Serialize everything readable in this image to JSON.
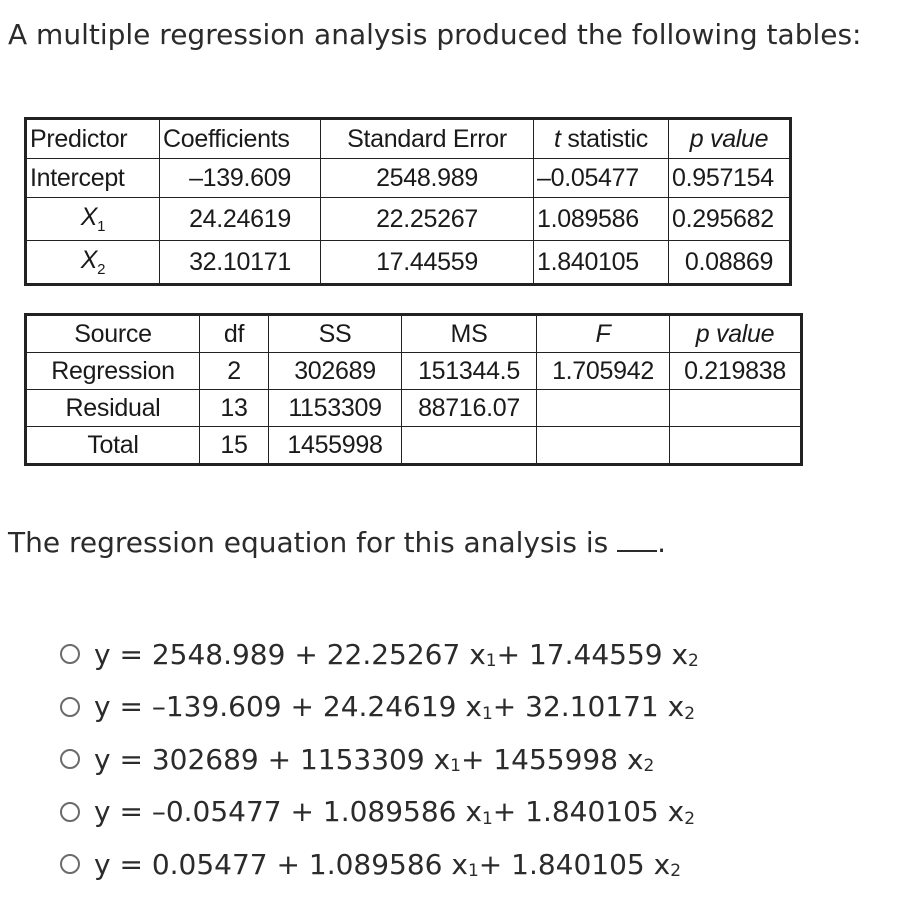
{
  "heading": "A multiple regression analysis produced the following tables:",
  "coef_table": {
    "headers": [
      "Predictor",
      "Coefficients",
      "Standard Error",
      "t",
      " statistic",
      "p",
      " value"
    ],
    "rows": [
      {
        "predictor": "Intercept",
        "coef": "–139.609",
        "se": "2548.989",
        "t": "–0.05477",
        "p": "0.957154"
      },
      {
        "predictor_base": "X",
        "predictor_sub": "1",
        "coef": "24.24619",
        "se": "22.25267",
        "t": "1.089586",
        "p": "0.295682"
      },
      {
        "predictor_base": "X",
        "predictor_sub": "2",
        "coef": "32.10171",
        "se": "17.44559",
        "t": "1.840105",
        "p": "0.08869"
      }
    ]
  },
  "anova_table": {
    "headers": [
      "Source",
      "df",
      "SS",
      "MS",
      "F",
      "p",
      " value"
    ],
    "rows": [
      {
        "source": "Regression",
        "df": "2",
        "ss": "302689",
        "ms": "151344.5",
        "f": "1.705942",
        "p": "0.219838"
      },
      {
        "source": "Residual",
        "df": "13",
        "ss": "1153309",
        "ms": "88716.07",
        "f": "",
        "p": ""
      },
      {
        "source": "Total",
        "df": "15",
        "ss": "1455998",
        "ms": "",
        "f": "",
        "p": ""
      }
    ]
  },
  "question": "The regression equation for this analysis is ",
  "question_end": ".",
  "options": [
    {
      "a": "y = 2548.989 + 22.25267 x",
      "s1": "1",
      "b": " + 17.44559 x",
      "s2": "2"
    },
    {
      "a": "y = –139.609 + 24.24619 x",
      "s1": "1",
      "b": " + 32.10171 x",
      "s2": "2"
    },
    {
      "a": "y = 302689 + 1153309 x",
      "s1": "1",
      "b": " + 1455998 x",
      "s2": "2"
    },
    {
      "a": "y = –0.05477 + 1.089586 x",
      "s1": "1",
      "b": " + 1.840105 x",
      "s2": "2"
    },
    {
      "a": "y = 0.05477 + 1.089586 x",
      "s1": "1",
      "b": " + 1.840105 x",
      "s2": "2"
    }
  ],
  "radio_icon": "radio-unselected-icon"
}
